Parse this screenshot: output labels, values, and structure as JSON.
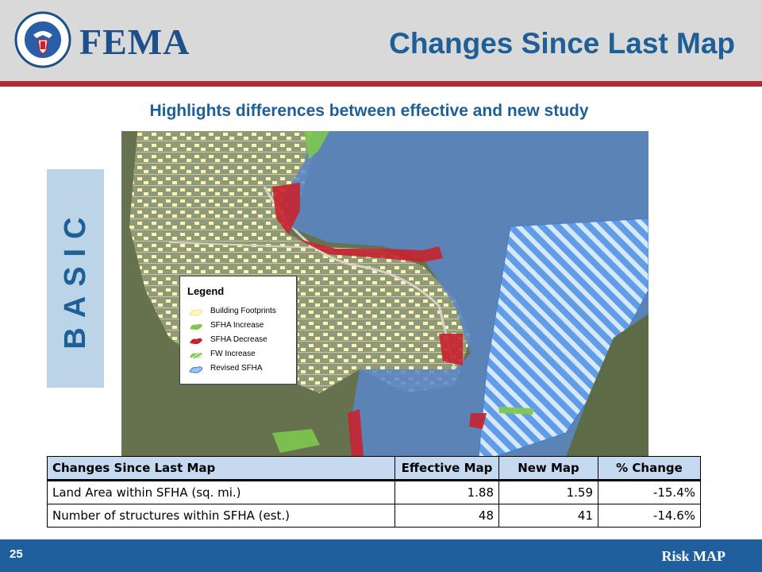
{
  "header": {
    "logo_text": "FEMA",
    "slide_title": "Changes Since Last Map"
  },
  "subtitle": "Highlights differences between effective and new study",
  "side_tab": {
    "label": "BASIC"
  },
  "legend": {
    "title": "Legend",
    "items": [
      {
        "label": "Building Footprints",
        "color": "#fff7b0"
      },
      {
        "label": "SFHA Increase",
        "color": "#7ec850"
      },
      {
        "label": "SFHA Decrease",
        "color": "#c8222e"
      },
      {
        "label": "FW Increase",
        "color": "#7ec850"
      },
      {
        "label": "Revised SFHA",
        "color": "#3f7ec9"
      }
    ]
  },
  "table": {
    "headers": [
      "Changes Since Last Map",
      "Effective Map",
      "New Map",
      "% Change"
    ],
    "rows": [
      [
        "Land Area within SFHA (sq. mi.)",
        "1.88",
        "1.59",
        "-15.4%"
      ],
      [
        "Number of structures within SFHA (est.)",
        "48",
        "41",
        "-14.6%"
      ]
    ]
  },
  "footer": {
    "page_number": "25",
    "brand": "Risk MAP"
  },
  "colors": {
    "title_blue": "#1d5f96",
    "rule_red": "#b02a3a",
    "footer_blue": "#1f5f9e",
    "table_header": "#c5d9f1"
  }
}
